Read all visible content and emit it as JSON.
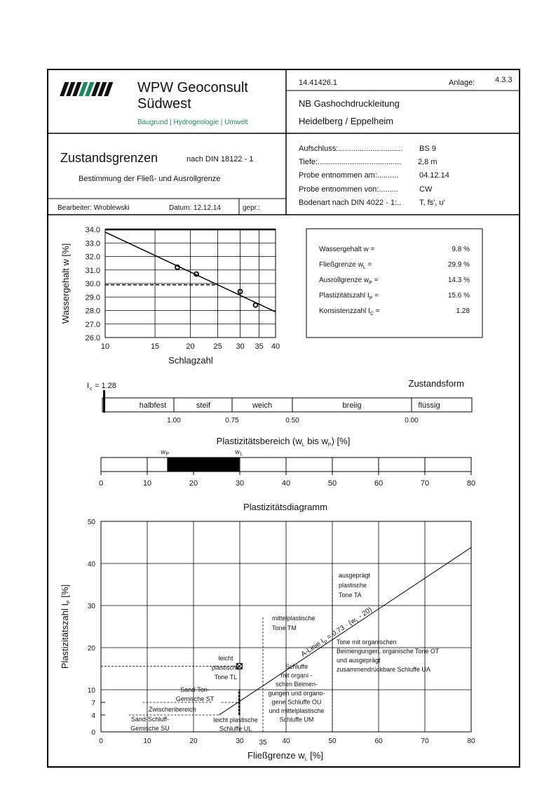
{
  "header": {
    "company_line1": "WPW Geoconsult",
    "company_line2": "Südwest",
    "company_tagline": "Baugrund | Hydrogeologie | Umwelt",
    "project_number": "14.41426.1",
    "anlage_label": "Anlage:",
    "anlage_value": "4.3.3",
    "project_line1": "NB Gashochdruckleitung",
    "project_line2": "Heidelberg / Eppelheim",
    "title": "Zustandsgrenzen",
    "norm": "nach DIN 18122 - 1",
    "subtitle": "Bestimmung der Fließ- und Ausrollgrenze",
    "bearbeiter": "Bearbeiter: Wroblewski",
    "datum": "Datum: 12.12.14",
    "gepr": "gepr.:",
    "info": [
      {
        "label": "Aufschluss:..............................",
        "value": "BS 9"
      },
      {
        "label": "Tiefe:.......................................",
        "value": "2,8 m"
      },
      {
        "label": "Probe entnommen am:..........",
        "value": "04.12.14"
      },
      {
        "label": "Probe entnommen von:.........",
        "value": "CW"
      },
      {
        "label": "Bodenart nach DIN 4022 - 1:..",
        "value": "T, fs', u'"
      }
    ]
  },
  "results": [
    {
      "label": "Wassergehalt w =",
      "sub": "",
      "value": "9.8 %"
    },
    {
      "label": "Fließgrenze w",
      "sub": "L",
      "value": "29.9 %"
    },
    {
      "label": "Ausrollgrenze w",
      "sub": "P",
      "value": "14.3 %"
    },
    {
      "label": "Plastizitätszahl I",
      "sub": "P",
      "value": "15.6 %"
    },
    {
      "label": "Konsistenzzahl I",
      "sub": "C",
      "value": "1.28"
    }
  ],
  "zustand": {
    "title": "Zustandsform",
    "ic_label": "I",
    "ic_sub": "c",
    "ic_value": "= 1.28",
    "ic": 1.28,
    "zones": [
      "halbfest",
      "steif",
      "weich",
      "breiig",
      "flüssig"
    ],
    "ticks": [
      "1.00",
      "0.75",
      "0.50",
      "0.00"
    ]
  },
  "chart_data": [
    {
      "type": "scatter",
      "name": "fliessgrenze-diagram",
      "xlabel": "Schlagzahl",
      "ylabel": "Wassergehalt w [%]",
      "xscale": "log",
      "xlim": [
        10,
        40
      ],
      "ylim": [
        26,
        34
      ],
      "xticks": [
        10,
        15,
        20,
        25,
        30,
        35,
        40
      ],
      "yticks": [
        "26.0",
        "27.0",
        "28.0",
        "29.0",
        "30.0",
        "31.0",
        "32.0",
        "33.0",
        "34.0"
      ],
      "points": [
        [
          18,
          31.2
        ],
        [
          21,
          30.7
        ],
        [
          30,
          29.4
        ],
        [
          34,
          28.4
        ]
      ],
      "fit_line": [
        [
          10,
          33.8
        ],
        [
          40,
          27.9
        ]
      ],
      "reference": {
        "x": 25,
        "y": 29.9
      }
    },
    {
      "type": "bar",
      "name": "plastizitaetsbereich",
      "title": "Plastizitätsbereich (w",
      "title_sub1": "L",
      "title_mid": " bis w",
      "title_sub2": "P",
      "title_end": ") [%]",
      "xlim": [
        0,
        80
      ],
      "xticks": [
        0,
        10,
        20,
        30,
        40,
        50,
        60,
        70,
        80
      ],
      "wp": 14.3,
      "wl": 29.9,
      "wp_label": "w",
      "wp_sub": "P",
      "wl_label": "w",
      "wl_sub": "L"
    },
    {
      "type": "scatter",
      "name": "plastizitaetsdiagramm",
      "title": "Plastizitätsdiagramm",
      "xlabel": "Fließgrenze w",
      "xlabel_sub": "L",
      "xlabel_end": " [%]",
      "ylabel": "Plastizitätszahl I",
      "ylabel_sub": "P",
      "ylabel_end": " [%]",
      "xlim": [
        0,
        80
      ],
      "ylim": [
        0,
        50
      ],
      "xticks": [
        0,
        10,
        20,
        30,
        40,
        50,
        60,
        70,
        80
      ],
      "extra_xtick": 35,
      "yticks": [
        0,
        4,
        7,
        10,
        20,
        30,
        40,
        50
      ],
      "point": [
        29.9,
        15.6
      ],
      "a_line": {
        "label": "A-Linie I",
        "sub": "P",
        "rest": " = 0.73 · (w",
        "sub2": "L",
        "end": " - 20)"
      },
      "regions": {
        "ta": [
          "ausgeprägt",
          "plastische",
          "Tone TA"
        ],
        "tm": [
          "mittelplastische",
          "Tone TM"
        ],
        "ot": [
          "Tone mit organischen",
          "Beimengungen, organische Tone OT",
          "und ausgeprägt",
          "zusammendrückbare Schluffe UA"
        ],
        "tl": [
          "leicht",
          "plastische",
          "Tone TL"
        ],
        "ou": [
          "Schluffe",
          "mit organi -",
          "schen Beimen-",
          "gungen und organo-",
          "gene Schluffe OU",
          "und mittelplastische",
          "Schluffe UM"
        ],
        "st": [
          "Sand-Ton-",
          "Gemische ST"
        ],
        "zw": [
          "Zwischenbereich"
        ],
        "su": [
          "Sand-Schluff-",
          "Gemische SU"
        ],
        "ul": [
          "leicht plastische",
          "Schluffe UL"
        ]
      }
    }
  ]
}
